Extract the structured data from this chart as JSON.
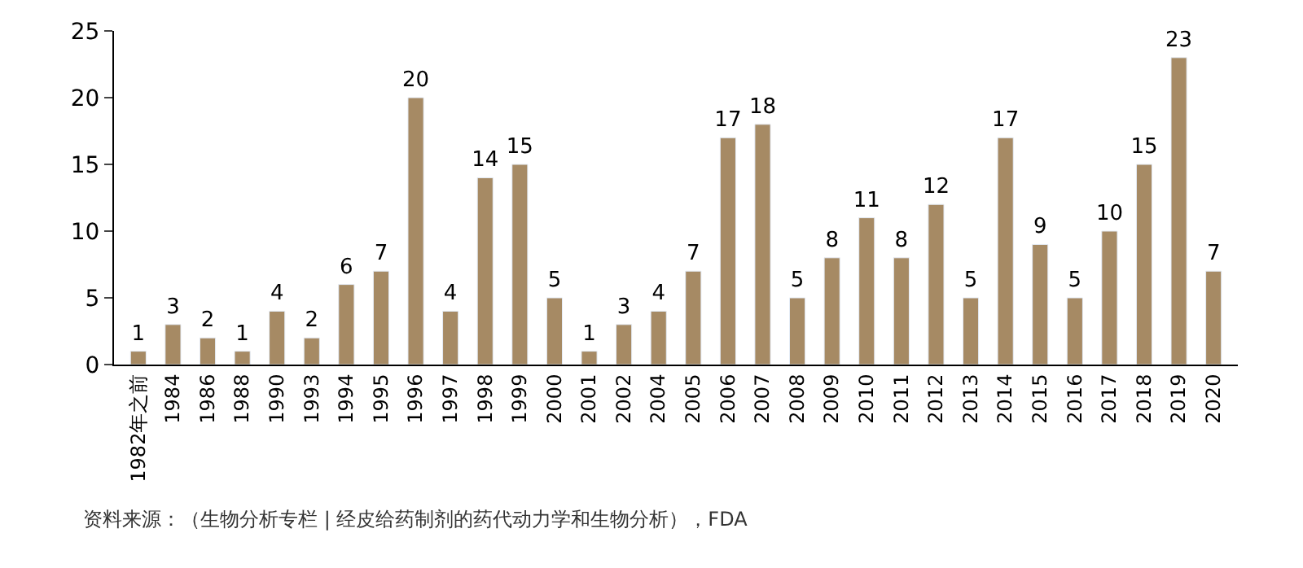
{
  "chart_data": {
    "type": "bar",
    "categories": [
      "1982年之前",
      "1984",
      "1986",
      "1988",
      "1990",
      "1993",
      "1994",
      "1995",
      "1996",
      "1997",
      "1998",
      "1999",
      "2000",
      "2001",
      "2002",
      "2004",
      "2005",
      "2006",
      "2007",
      "2008",
      "2009",
      "2010",
      "2011",
      "2012",
      "2013",
      "2014",
      "2015",
      "2016",
      "2017",
      "2018",
      "2019",
      "2020"
    ],
    "values": [
      1,
      3,
      2,
      1,
      4,
      2,
      6,
      7,
      20,
      4,
      14,
      15,
      5,
      1,
      3,
      4,
      7,
      17,
      18,
      5,
      8,
      11,
      8,
      12,
      5,
      17,
      9,
      5,
      10,
      15,
      23,
      7
    ],
    "color": "#a68a64",
    "ylim": [
      0,
      25
    ],
    "yticks": [
      0,
      5,
      10,
      15,
      20,
      25
    ],
    "data_labels": true,
    "annotations": [
      "资料来源：（生物分析专栏 | 经皮给药制剂的药代动力学和生物分析），FDA"
    ]
  }
}
